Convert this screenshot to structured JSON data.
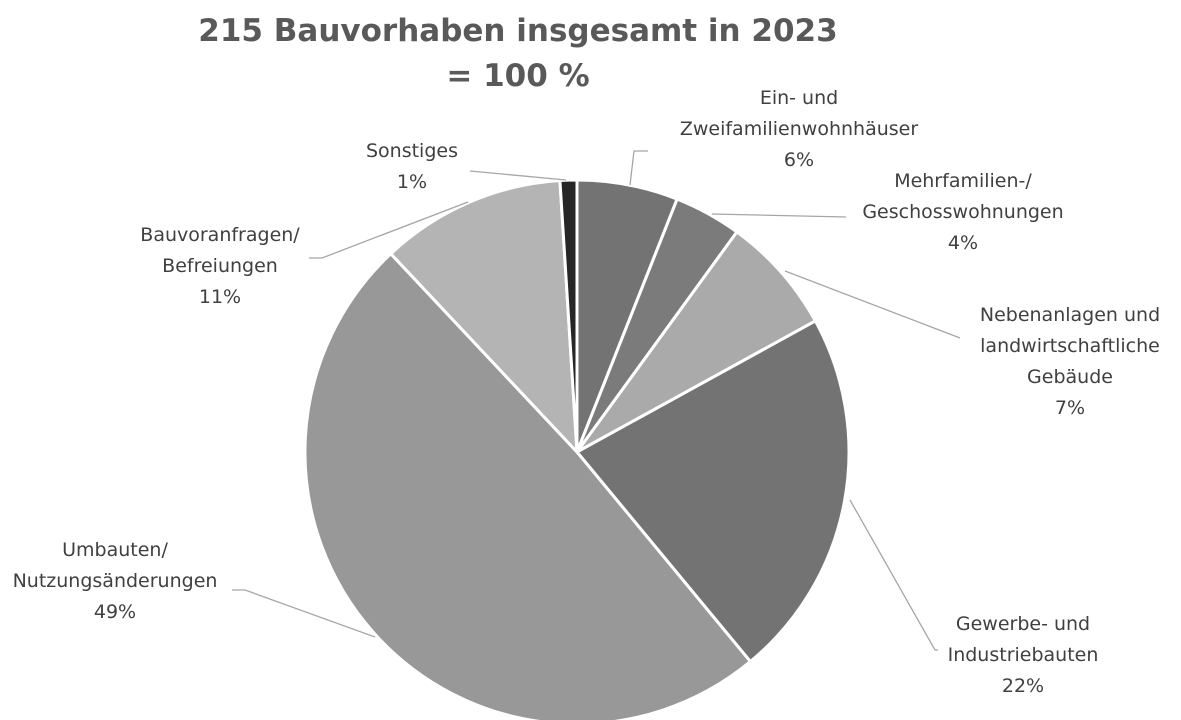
{
  "chart_data": {
    "type": "pie",
    "title_lines": [
      "215 Bauvorhaben insgesamt in 2023",
      "= 100 %"
    ],
    "slices": [
      {
        "label_lines": [
          "Ein- und",
          "Zweifamilienwohnhäuser"
        ],
        "value": 6,
        "value_label": "6%",
        "color": "#737373"
      },
      {
        "label_lines": [
          "Mehrfamilien-/",
          "Geschosswohnungen"
        ],
        "value": 4,
        "value_label": "4%",
        "color": "#7b7b7b"
      },
      {
        "label_lines": [
          "Nebenanlagen und",
          "landwirtschaftliche",
          "Gebäude"
        ],
        "value": 7,
        "value_label": "7%",
        "color": "#aaaaaa"
      },
      {
        "label_lines": [
          "Gewerbe- und",
          "Industriebauten"
        ],
        "value": 22,
        "value_label": "22%",
        "color": "#737373"
      },
      {
        "label_lines": [
          "Umbauten/",
          "Nutzungsänderungen"
        ],
        "value": 49,
        "value_label": "49%",
        "color": "#989898"
      },
      {
        "label_lines": [
          "Bauvoranfragen/",
          "Befreiungen"
        ],
        "value": 11,
        "value_label": "11%",
        "color": "#b4b4b4"
      },
      {
        "label_lines": [
          "Sonstiges"
        ],
        "value": 1,
        "value_label": "1%",
        "color": "#262626"
      }
    ],
    "start_angle": "12 o'clock",
    "direction": "clockwise",
    "legend": "none"
  }
}
